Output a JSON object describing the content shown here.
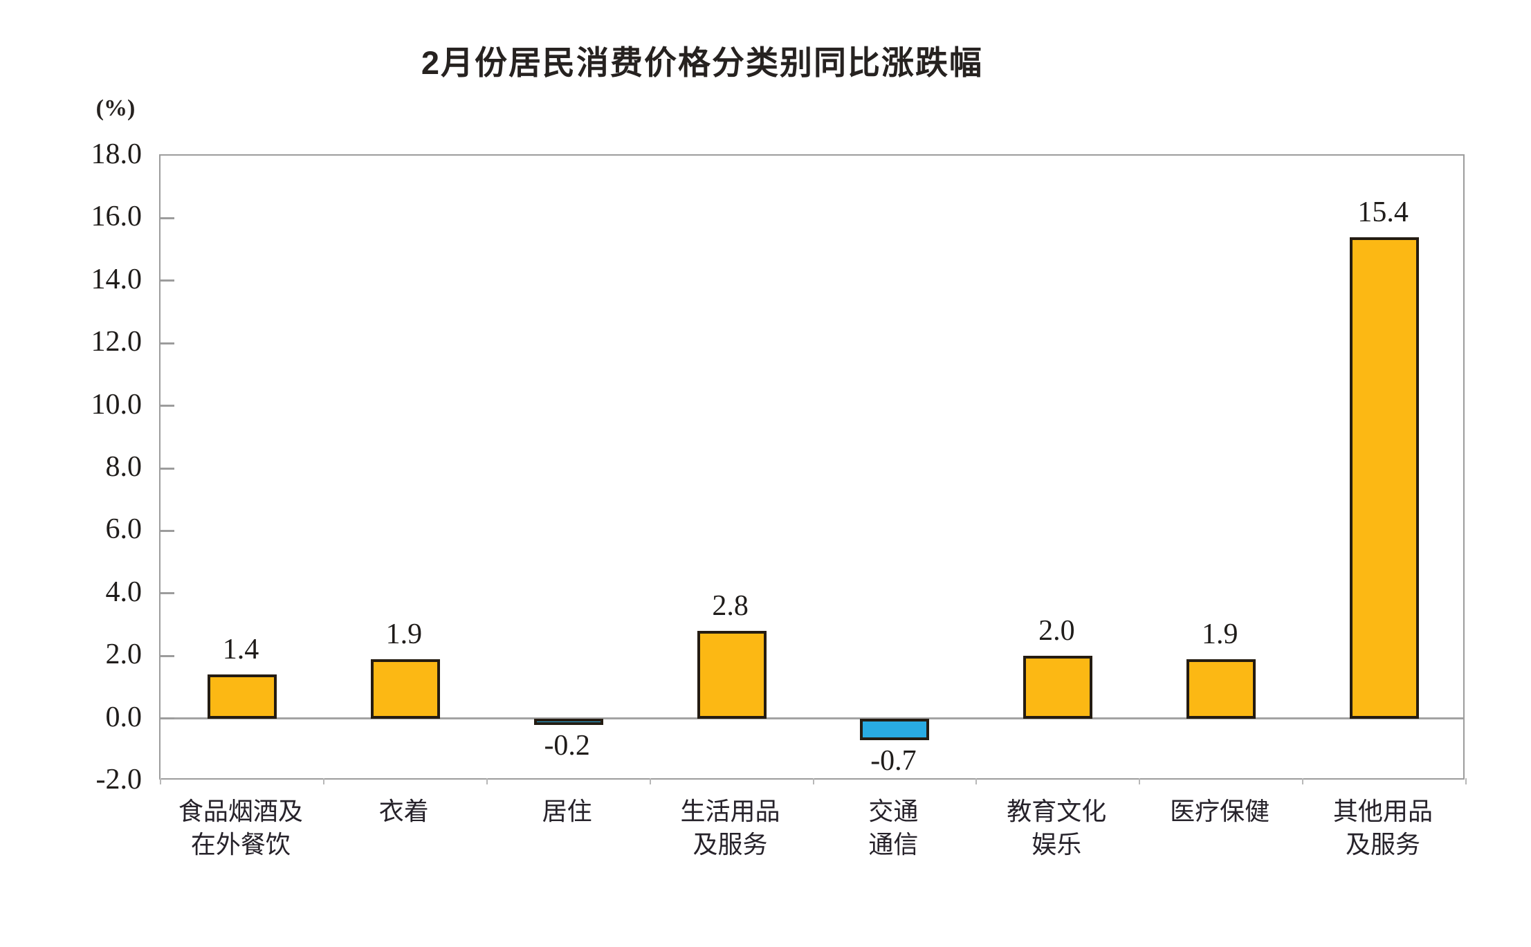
{
  "title": "2月份居民消费价格分类别同比涨跌幅",
  "unit_label": "(%)",
  "chart_data": {
    "type": "bar",
    "title": "2月份居民消费价格分类别同比涨跌幅",
    "ylabel": "(%)",
    "xlabel": "",
    "categories": [
      "食品烟酒及在外餐饮",
      "衣着",
      "居住",
      "生活用品及服务",
      "交通通信",
      "教育文化娱乐",
      "医疗保健",
      "其他用品及服务"
    ],
    "category_lines": [
      [
        "食品烟酒及",
        "在外餐饮"
      ],
      [
        "衣着"
      ],
      [
        "居住"
      ],
      [
        "生活用品",
        "及服务"
      ],
      [
        "交通",
        "通信"
      ],
      [
        "教育文化",
        "娱乐"
      ],
      [
        "医疗保健"
      ],
      [
        "其他用品",
        "及服务"
      ]
    ],
    "values": [
      1.4,
      1.9,
      -0.2,
      2.8,
      -0.7,
      2.0,
      1.9,
      15.4
    ],
    "value_labels": [
      "1.4",
      "1.9",
      "-0.2",
      "2.8",
      "-0.7",
      "2.0",
      "1.9",
      "15.4"
    ],
    "ylim": [
      -2.0,
      18.0
    ],
    "ytick_step": 2.0,
    "ytick_labels": [
      "18.0",
      "16.0",
      "14.0",
      "12.0",
      "10.0",
      "8.0",
      "6.0",
      "4.0",
      "2.0",
      "0.0",
      "-2.0"
    ],
    "grid": "off",
    "legend": "none",
    "zero_line": true,
    "colors": {
      "positive_bar": "#FCB814",
      "negative_bar": "#29ABE2",
      "bar_border": "#241C12",
      "axis_frame": "#9C9C9C",
      "zero_line": "#A3A3A3",
      "text": "#1F1C1A"
    }
  }
}
